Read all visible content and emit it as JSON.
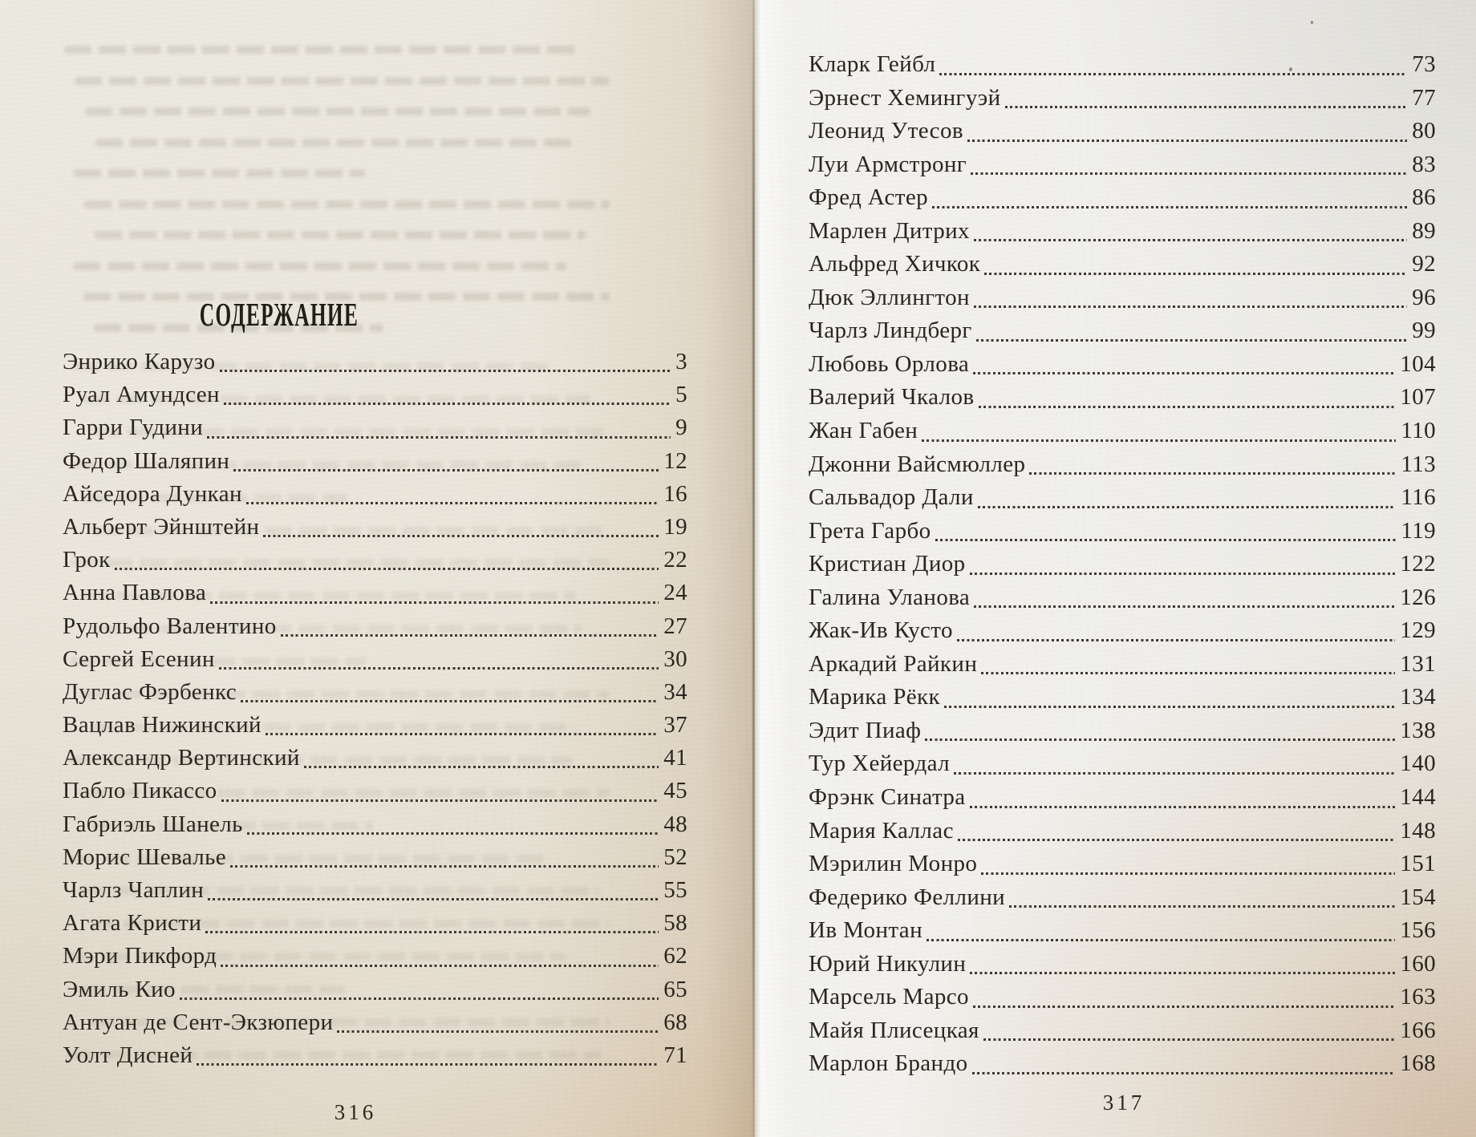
{
  "book": {
    "title": "СОДЕРЖАНИЕ",
    "left_page": {
      "folio": "316",
      "entries": [
        {
          "name": "Энрико Карузо",
          "page": "3"
        },
        {
          "name": "Руал Амундсен",
          "page": "5"
        },
        {
          "name": "Гарри Гудини",
          "page": "9"
        },
        {
          "name": "Федор Шаляпин",
          "page": "12"
        },
        {
          "name": "Айседора Дункан",
          "page": "16"
        },
        {
          "name": "Альберт Эйнштейн",
          "page": "19"
        },
        {
          "name": "Грок",
          "page": "22"
        },
        {
          "name": "Анна Павлова",
          "page": "24"
        },
        {
          "name": "Рудольфо Валентино",
          "page": "27"
        },
        {
          "name": "Сергей Есенин",
          "page": "30"
        },
        {
          "name": "Дуглас Фэрбенкс",
          "page": "34"
        },
        {
          "name": "Вацлав Нижинский",
          "page": "37"
        },
        {
          "name": "Александр Вертинский",
          "page": "41"
        },
        {
          "name": "Пабло Пикассо",
          "page": "45"
        },
        {
          "name": "Габриэль Шанель",
          "page": "48"
        },
        {
          "name": "Морис Шевалье",
          "page": "52"
        },
        {
          "name": "Чарлз Чаплин",
          "page": "55"
        },
        {
          "name": "Агата Кристи",
          "page": "58"
        },
        {
          "name": "Мэри Пикфорд",
          "page": "62"
        },
        {
          "name": "Эмиль Кио",
          "page": "65"
        },
        {
          "name": "Антуан де Сент-Экзюпери",
          "page": "68"
        },
        {
          "name": "Уолт Дисней",
          "page": "71"
        }
      ]
    },
    "right_page": {
      "folio": "317",
      "entries": [
        {
          "name": "Кларк Гейбл",
          "page": "73"
        },
        {
          "name": "Эрнест Хемингуэй",
          "page": "77"
        },
        {
          "name": "Леонид Утесов",
          "page": "80"
        },
        {
          "name": "Луи Армстронг",
          "page": "83"
        },
        {
          "name": "Фред Астер",
          "page": "86"
        },
        {
          "name": "Марлен Дитрих",
          "page": "89"
        },
        {
          "name": "Альфред Хичкок",
          "page": "92"
        },
        {
          "name": "Дюк Эллингтон",
          "page": "96"
        },
        {
          "name": "Чарлз Линдберг",
          "page": "99"
        },
        {
          "name": "Любовь Орлова",
          "page": "104"
        },
        {
          "name": "Валерий Чкалов",
          "page": "107"
        },
        {
          "name": "Жан Габен",
          "page": "110"
        },
        {
          "name": "Джонни Вайсмюллер",
          "page": "113"
        },
        {
          "name": "Сальвадор Дали",
          "page": "116"
        },
        {
          "name": "Грета Гарбо",
          "page": "119"
        },
        {
          "name": "Кристиан Диор",
          "page": "122"
        },
        {
          "name": "Галина Уланова",
          "page": "126"
        },
        {
          "name": "Жак-Ив Кусто",
          "page": "129"
        },
        {
          "name": "Аркадий Райкин",
          "page": "131"
        },
        {
          "name": "Марика Рёкк",
          "page": "134"
        },
        {
          "name": "Эдит Пиаф",
          "page": "138"
        },
        {
          "name": "Тур Хейердал",
          "page": "140"
        },
        {
          "name": "Фрэнк Синатра",
          "page": "144"
        },
        {
          "name": "Мария Каллас",
          "page": "148"
        },
        {
          "name": "Мэрилин Монро",
          "page": "151"
        },
        {
          "name": "Федерико Феллини",
          "page": "154"
        },
        {
          "name": "Ив Монтан",
          "page": "156"
        },
        {
          "name": "Юрий Никулин",
          "page": "160"
        },
        {
          "name": "Марсель Марсо",
          "page": "163"
        },
        {
          "name": "Майя Плисецкая",
          "page": "166"
        },
        {
          "name": "Марлон Брандо",
          "page": "168"
        }
      ]
    }
  },
  "colors": {
    "ink": "#26221c",
    "paper_left": "#e9e5da",
    "paper_right": "#efeeea",
    "page_edge_tan": "#c29a6d",
    "dot_leader": "#3b362d"
  }
}
